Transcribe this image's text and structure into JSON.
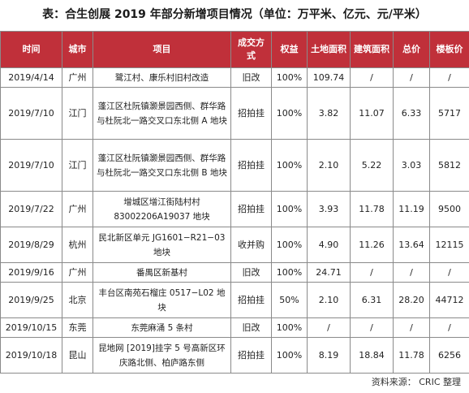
{
  "title": "表：合生创展 2019 年部分新增项目情况（单位：万平米、亿元、元/平米）",
  "columns": [
    "时间",
    "城市",
    "项目",
    "成交方式",
    "权益",
    "土地面积",
    "建筑面积",
    "总价",
    "楼板价"
  ],
  "rows": [
    {
      "date": "2019/4/14",
      "city": "广州",
      "project": "鹭江村、康乐村旧村改造",
      "method": "旧改",
      "equity": "100%",
      "land_area": "109.74",
      "floor_area": "/",
      "total_price": "/",
      "floor_price": "/"
    },
    {
      "date": "2019/7/10",
      "city": "江门",
      "project": "蓬江区杜阮镇灏景园西侧、群华路与杜阮北一路交叉口东北侧 A 地块",
      "method": "招拍挂",
      "equity": "100%",
      "land_area": "3.82",
      "floor_area": "11.07",
      "total_price": "6.33",
      "floor_price": "5717"
    },
    {
      "date": "2019/7/10",
      "city": "江门",
      "project": "蓬江区杜阮镇灏景园西侧、群华路与杜阮北一路交叉口东北侧 B 地块",
      "method": "招拍挂",
      "equity": "100%",
      "land_area": "2.10",
      "floor_area": "5.22",
      "total_price": "3.03",
      "floor_price": "5812"
    },
    {
      "date": "2019/7/22",
      "city": "广州",
      "project": "增城区增江街陆村村 83002206A19037 地块",
      "method": "招拍挂",
      "equity": "100%",
      "land_area": "3.93",
      "floor_area": "11.78",
      "total_price": "11.19",
      "floor_price": "9500"
    },
    {
      "date": "2019/8/29",
      "city": "杭州",
      "project": "民北新区单元 JG1601−R21−03 地块",
      "method": "收并购",
      "equity": "100%",
      "land_area": "4.90",
      "floor_area": "11.26",
      "total_price": "13.64",
      "floor_price": "12115"
    },
    {
      "date": "2019/9/16",
      "city": "广州",
      "project": "番禺区新基村",
      "method": "旧改",
      "equity": "100%",
      "land_area": "24.71",
      "floor_area": "/",
      "total_price": "/",
      "floor_price": "/"
    },
    {
      "date": "2019/9/25",
      "city": "北京",
      "project": "丰台区南苑石榴庄 0517−L02 地块",
      "method": "招拍挂",
      "equity": "50%",
      "land_area": "2.10",
      "floor_area": "6.31",
      "total_price": "28.20",
      "floor_price": "44712"
    },
    {
      "date": "2019/10/15",
      "city": "东莞",
      "project": "东莞麻涌 5 条村",
      "method": "旧改",
      "equity": "100%",
      "land_area": "/",
      "floor_area": "/",
      "total_price": "/",
      "floor_price": "/"
    },
    {
      "date": "2019/10/18",
      "city": "昆山",
      "project": "昆地网 [2019]挂字 5 号高新区环庆路北侧、柏庐路东侧",
      "method": "招拍挂",
      "equity": "100%",
      "land_area": "8.19",
      "floor_area": "18.84",
      "total_price": "11.78",
      "floor_price": "6256"
    }
  ],
  "source": "资料来源：  CRIC 整理",
  "colors": {
    "header_bg": "#c0303a",
    "header_text": "#ffffff",
    "border": "#8a8a8a"
  }
}
